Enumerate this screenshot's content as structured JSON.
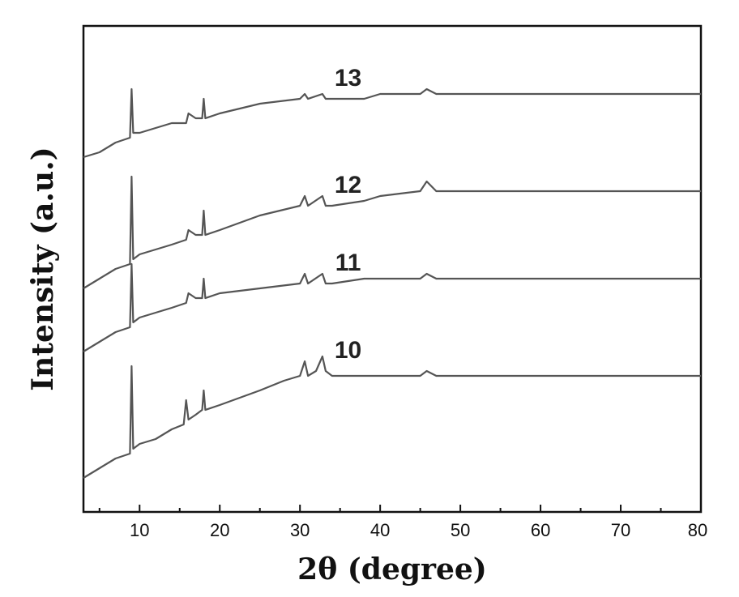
{
  "chart_data": {
    "type": "line",
    "xlabel": "2θ (degree)",
    "ylabel": "Intensity (a.u.)",
    "xlim": [
      3,
      80
    ],
    "xticks": [
      10,
      20,
      30,
      40,
      50,
      60,
      70,
      80
    ],
    "ylim": [
      0,
      100
    ],
    "yticks_shown": false,
    "grid": false,
    "legend": "none",
    "series_color": "#555555",
    "series": [
      {
        "name": "10",
        "x": [
          3,
          5,
          7,
          8.8,
          9.0,
          9.2,
          10,
          12,
          14,
          15.5,
          15.8,
          16.1,
          17,
          17.8,
          18.0,
          18.2,
          20,
          25,
          28,
          30,
          30.6,
          31,
          32,
          32.8,
          33.2,
          34,
          36,
          40,
          45,
          45.8,
          47,
          50,
          55,
          60,
          65,
          70,
          75,
          80
        ],
        "y": [
          7,
          9,
          11,
          12,
          30,
          13,
          14,
          15,
          17,
          18,
          23,
          19,
          20,
          21,
          25,
          21,
          22,
          25,
          27,
          28,
          31,
          28,
          29,
          32,
          29,
          28,
          28,
          28,
          28,
          29,
          28,
          28,
          28,
          28,
          28,
          28,
          28,
          28
        ]
      },
      {
        "name": "11",
        "x": [
          3,
          5,
          7,
          8.8,
          9.0,
          9.2,
          10,
          12,
          14,
          15.8,
          16.1,
          17,
          17.8,
          18.0,
          18.2,
          20,
          25,
          30,
          30.6,
          31,
          32.8,
          33.2,
          34,
          38,
          45,
          45.8,
          47,
          50,
          55,
          60,
          65,
          70,
          75,
          80
        ],
        "y": [
          33,
          35,
          37,
          38,
          51,
          39,
          40,
          41,
          42,
          43,
          45,
          44,
          44,
          48,
          44,
          45,
          46,
          47,
          49,
          47,
          49,
          47,
          47,
          48,
          48,
          49,
          48,
          48,
          48,
          48,
          48,
          48,
          48,
          48
        ]
      },
      {
        "name": "12",
        "x": [
          3,
          5,
          7,
          8.8,
          9.0,
          9.2,
          10,
          12,
          14,
          15.8,
          16.1,
          17,
          17.8,
          18.0,
          18.2,
          20,
          25,
          30,
          30.6,
          31,
          32.8,
          33.2,
          34,
          38,
          40,
          45,
          45.8,
          47,
          50,
          55,
          60,
          65,
          70,
          75,
          80
        ],
        "y": [
          46,
          48,
          50,
          51,
          69,
          52,
          53,
          54,
          55,
          56,
          58,
          57,
          57,
          62,
          57,
          58,
          61,
          63,
          65,
          63,
          65,
          63,
          63,
          64,
          65,
          66,
          68,
          66,
          66,
          66,
          66,
          66,
          66,
          66,
          66
        ]
      },
      {
        "name": "13",
        "x": [
          3,
          5,
          7,
          8.8,
          9.0,
          9.2,
          10,
          12,
          14,
          15.8,
          16.1,
          17,
          17.8,
          18.0,
          18.2,
          20,
          25,
          30,
          30.6,
          31,
          32.8,
          33.2,
          34,
          38,
          40,
          45,
          45.8,
          47,
          50,
          55,
          60,
          65,
          70,
          75,
          80
        ],
        "y": [
          73,
          74,
          76,
          77,
          87,
          78,
          78,
          79,
          80,
          80,
          82,
          81,
          81,
          85,
          81,
          82,
          84,
          85,
          86,
          85,
          86,
          85,
          85,
          85,
          86,
          86,
          87,
          86,
          86,
          86,
          86,
          86,
          86,
          86,
          86
        ]
      }
    ]
  }
}
